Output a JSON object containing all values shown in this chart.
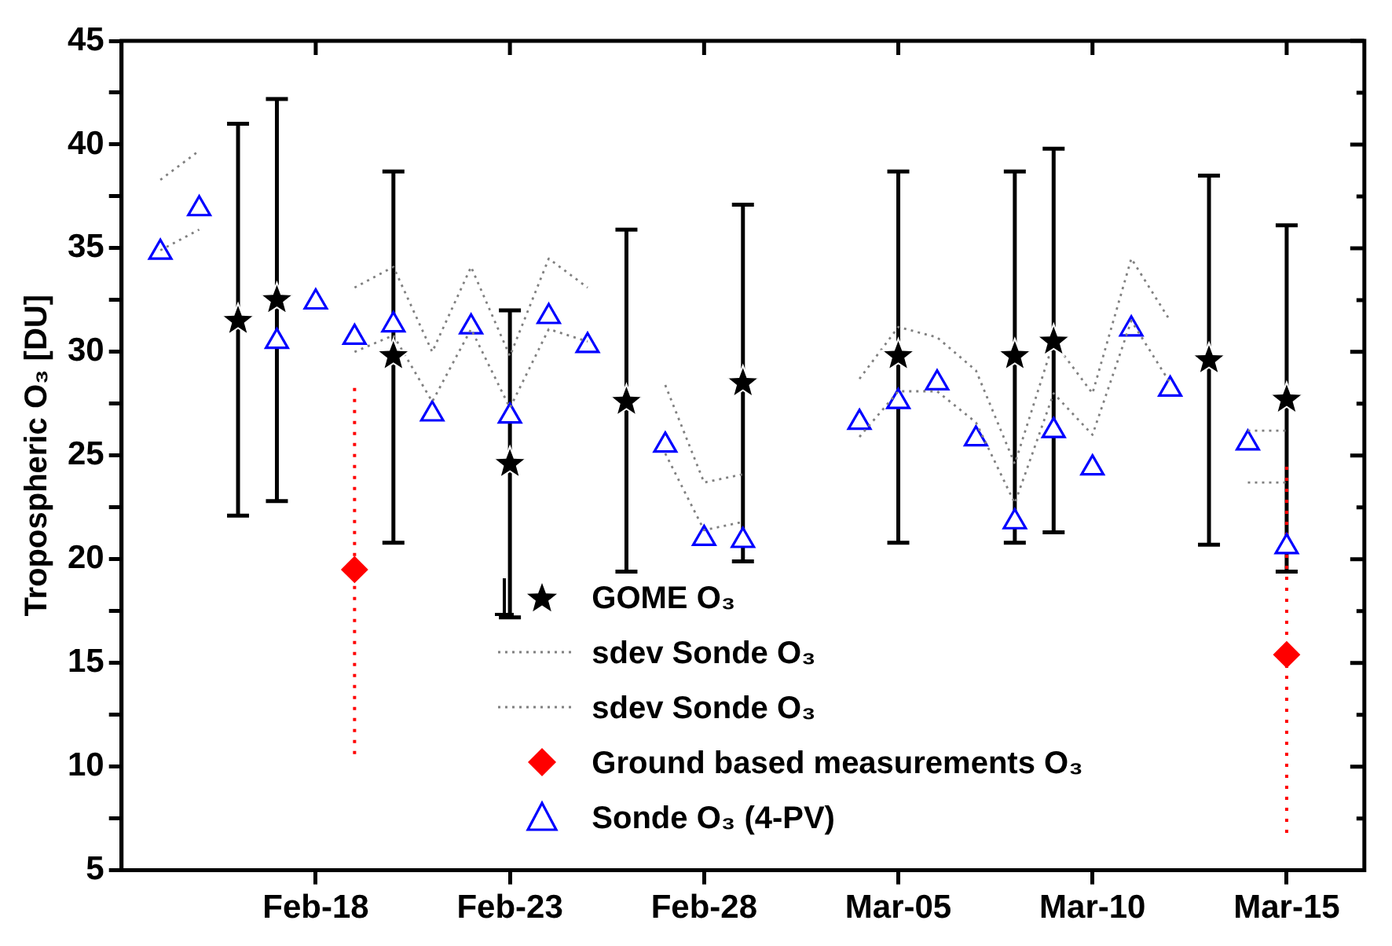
{
  "chart_data": {
    "type": "scatter",
    "ylabel": "Tropospheric O₃ [DU]",
    "xlim": [
      "--02-13",
      "--03-17"
    ],
    "xticks": [
      {
        "value": "--02-18",
        "label": "Feb-18"
      },
      {
        "value": "--02-23",
        "label": "Feb-23"
      },
      {
        "value": "--02-28",
        "label": "Feb-28"
      },
      {
        "value": "--03-05",
        "label": "Mar-05"
      },
      {
        "value": "--03-10",
        "label": "Mar-10"
      },
      {
        "value": "--03-15",
        "label": "Mar-15"
      }
    ],
    "ylim": [
      5,
      45
    ],
    "yticks": [
      5,
      {
        "value": 7.5,
        "label": null
      },
      10,
      {
        "value": 12.5,
        "label": null
      },
      15,
      {
        "value": 17.5,
        "label": null
      },
      20,
      {
        "value": 22.5,
        "label": null
      },
      25,
      {
        "value": 27.5,
        "label": null
      },
      30,
      {
        "value": 32.5,
        "label": null
      },
      35,
      {
        "value": 37.5,
        "label": null
      },
      40,
      {
        "value": 42.5,
        "label": null
      },
      45
    ],
    "grid": false,
    "legend": "bottom",
    "series": [
      {
        "name": "GOME O₃",
        "type": "scatter",
        "marker": "star",
        "color": "#000000",
        "x": [
          "--02-16",
          "--02-17",
          "--02-20",
          "--02-23",
          "--02-26",
          "--03-01",
          "--03-05",
          "--03-08",
          "--03-09",
          "--03-13",
          "--03-15"
        ],
        "values": [
          31.5,
          32.5,
          29.8,
          24.6,
          27.6,
          28.5,
          29.8,
          29.8,
          30.5,
          29.6,
          27.7
        ],
        "errors": [
          [
            22.1,
            41.0
          ],
          [
            22.8,
            42.2
          ],
          [
            20.8,
            38.7
          ],
          [
            17.2,
            32.0
          ],
          [
            19.4,
            35.9
          ],
          [
            19.9,
            37.1
          ],
          [
            20.8,
            38.7
          ],
          [
            20.8,
            38.7
          ],
          [
            21.3,
            39.8
          ],
          [
            20.7,
            38.5
          ],
          [
            19.4,
            36.1
          ]
        ]
      },
      {
        "name": "sdev Sonde O₃",
        "type": "line",
        "marker": "none",
        "line_style": "dotted",
        "color": "#808080",
        "x": [
          "--02-14",
          "--02-15",
          "--02-16",
          "--02-19",
          "--02-20",
          "--02-21",
          "--02-22",
          "--02-23",
          "--02-24",
          "--02-25",
          "--02-26",
          "--02-27",
          "--02-28",
          "--03-01",
          "--03-02",
          "--03-04",
          "--03-05",
          "--03-06",
          "--03-07",
          "--03-08",
          "--03-09",
          "--03-10",
          "--03-11",
          "--03-12",
          "--03-13",
          "--03-14",
          "--03-15"
        ],
        "values": [
          38.3,
          39.7,
          null,
          33.1,
          34.1,
          30.0,
          34.1,
          29.8,
          34.5,
          33.1,
          null,
          28.4,
          23.7,
          24.1,
          null,
          28.7,
          31.2,
          30.7,
          29.1,
          24.6,
          30.5,
          28.0,
          34.5,
          31.5,
          null,
          26.2,
          26.2
        ]
      },
      {
        "name": "sdev Sonde O₃",
        "type": "line",
        "marker": "none",
        "line_style": "dotted",
        "color": "#808080",
        "x": [
          "--02-14",
          "--02-15",
          "--02-16",
          "--02-19",
          "--02-20",
          "--02-21",
          "--02-22",
          "--02-23",
          "--02-24",
          "--02-25",
          "--02-26",
          "--02-27",
          "--02-28",
          "--03-01",
          "--03-02",
          "--03-04",
          "--03-05",
          "--03-06",
          "--03-07",
          "--03-08",
          "--03-09",
          "--03-10",
          "--03-11",
          "--03-12",
          "--03-13",
          "--03-14",
          "--03-15"
        ],
        "values": [
          34.9,
          35.9,
          null,
          30.0,
          30.8,
          27.6,
          31.1,
          27.3,
          31.1,
          30.5,
          null,
          25.1,
          21.4,
          21.8,
          null,
          25.9,
          28.1,
          28.1,
          26.6,
          22.7,
          28.0,
          26.0,
          31.5,
          28.5,
          null,
          23.7,
          23.7
        ]
      },
      {
        "name": "Ground based measurements O₃",
        "type": "scatter",
        "marker": "diamond",
        "line_style": "dotted",
        "color": "#ff0000",
        "x": [
          "--02-19",
          "--03-15"
        ],
        "values": [
          19.5,
          15.4
        ],
        "errors": [
          [
            10.6,
            28.5
          ],
          [
            6.8,
            24.6
          ]
        ]
      },
      {
        "name": "Sonde O₃ (4-PV)",
        "type": "scatter",
        "marker": "triangle",
        "color": "#0000ff",
        "x": [
          "--02-14",
          "--02-15",
          "--02-17",
          "--02-18",
          "--02-19",
          "--02-20",
          "--02-21",
          "--02-22",
          "--02-23",
          "--02-24",
          "--02-25",
          "--02-27",
          "--02-28",
          "--03-01",
          "--03-04",
          "--03-05",
          "--03-06",
          "--03-07",
          "--03-08",
          "--03-09",
          "--03-10",
          "--03-11",
          "--03-12",
          "--03-14",
          "--03-15"
        ],
        "values": [
          34.8,
          36.9,
          30.5,
          32.4,
          30.7,
          31.3,
          27.0,
          31.2,
          26.9,
          31.7,
          30.3,
          25.5,
          21.0,
          20.9,
          26.6,
          27.6,
          28.5,
          25.8,
          21.8,
          26.2,
          24.4,
          31.1,
          28.2,
          25.6,
          20.6
        ]
      }
    ]
  }
}
